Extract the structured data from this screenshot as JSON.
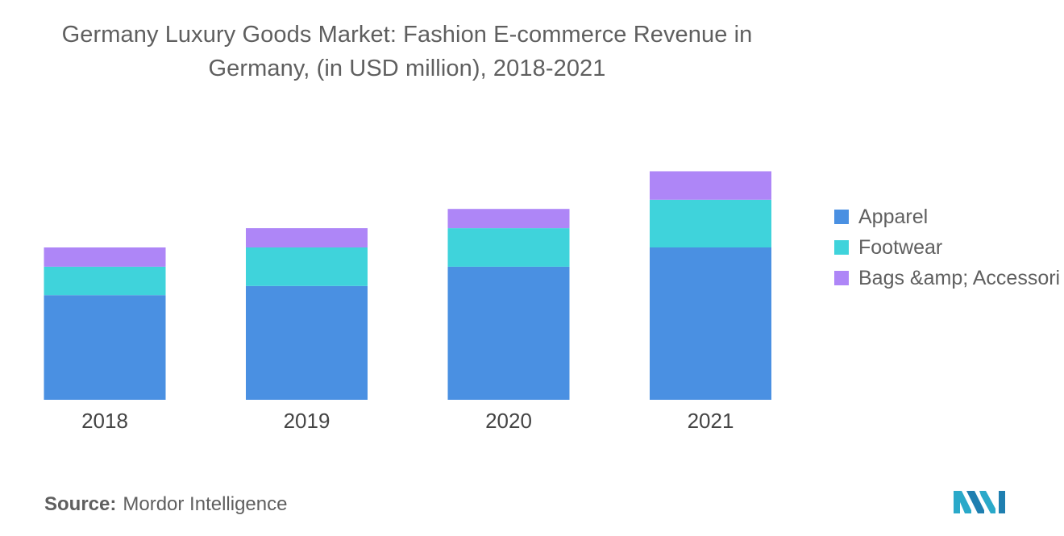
{
  "title_line1": "Germany Luxury Goods Market: Fashion E-commerce Revenue in",
  "title_line2": "Germany, (in USD million), 2018-2021",
  "chart_data": {
    "type": "bar",
    "stacked": true,
    "title": "Germany Luxury Goods Market: Fashion E-commerce Revenue in Germany, (in USD million), 2018-2021",
    "categories": [
      "2018",
      "2019",
      "2020",
      "2021"
    ],
    "series": [
      {
        "name": "Apparel",
        "color": "#4a90e2",
        "values": [
          114,
          124,
          145,
          166
        ]
      },
      {
        "name": "Footwear",
        "color": "#3fd3db",
        "values": [
          31,
          42,
          42,
          52
        ]
      },
      {
        "name": "Bags &amp; Accessori",
        "color": "#ae86f7",
        "values": [
          21,
          21,
          21,
          31
        ]
      }
    ],
    "ylim": [
      0,
      260
    ],
    "xlabel": "",
    "ylabel": "",
    "grid": false,
    "axis_labels_visible": false,
    "legend_position": "right"
  },
  "source": {
    "prefix": "Source:",
    "text": "Mordor Intelligence"
  },
  "logo_icon": "mordor-intelligence-logo"
}
